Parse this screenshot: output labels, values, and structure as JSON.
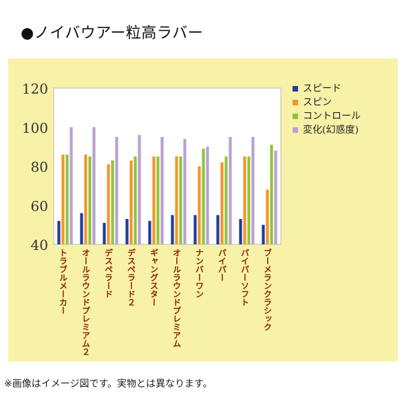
{
  "header": {
    "title": "●ノイバウアー粒高ラバー"
  },
  "footer": {
    "note": "※画像はイメージ図です。実物とは異なります。"
  },
  "chart_data": {
    "type": "bar",
    "title": "",
    "xlabel": "",
    "ylabel": "",
    "ylim": [
      40,
      120
    ],
    "yticks": [
      40,
      60,
      80,
      100,
      120
    ],
    "grid": false,
    "legend_position": "right",
    "background": "#f8f1a8",
    "plot_background": "#ffffff",
    "category_label_color": "#8b2500",
    "categories": [
      "トラブルメーカー",
      "オールラウンドプレミアム２",
      "デスペラード",
      "デスペラード２",
      "ギャングスター",
      "オールラウンドプレミアム",
      "ナンバーワン",
      "パイパー",
      "パイパーソフト",
      "ブーメランクラシック"
    ],
    "series": [
      {
        "name": "スピード",
        "color": "#1f3d99",
        "values": [
          52,
          56,
          51,
          53,
          52,
          55,
          55,
          55,
          53,
          50
        ]
      },
      {
        "name": "スピン",
        "color": "#f0962a",
        "values": [
          86,
          86,
          81,
          83,
          85,
          85,
          80,
          82,
          85,
          68
        ]
      },
      {
        "name": "コントロール",
        "color": "#8fc43c",
        "values": [
          86,
          85,
          83,
          85,
          85,
          85,
          89,
          85,
          85,
          91
        ]
      },
      {
        "name": "変化(幻惑度)",
        "color": "#b9a0d2",
        "values": [
          100,
          100,
          95,
          96,
          95,
          94,
          90,
          95,
          95,
          88
        ]
      }
    ]
  }
}
